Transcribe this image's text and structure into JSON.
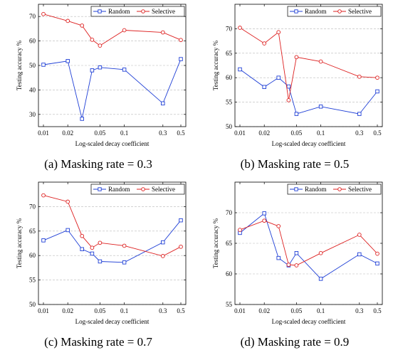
{
  "colors": {
    "random": "#1f3fd6",
    "selective": "#dd1f1f",
    "grid": "#b8b8b8"
  },
  "chart_data": [
    {
      "type": "line",
      "caption": "(a) Masking rate = 0.3",
      "xlabel": "Log-scaled decay coefficient",
      "ylabel": "Testing accuracy %",
      "xscale": "log",
      "xticks": [
        0.01,
        0.02,
        0.05,
        0.1,
        0.3,
        0.5
      ],
      "xtick_labels": [
        "0.01",
        "0.02",
        "0.05",
        "0.1",
        "0.3",
        "0.5"
      ],
      "ylim": [
        25,
        75
      ],
      "yticks": [
        30,
        40,
        50,
        60,
        70
      ],
      "grid": "horizontal dashed",
      "legend": "top-right",
      "series": [
        {
          "name": "Random",
          "marker": "square",
          "x": [
            0.01,
            0.02,
            0.03,
            0.04,
            0.05,
            0.1,
            0.3,
            0.5
          ],
          "y": [
            50.3,
            51.8,
            28.2,
            48.0,
            49.2,
            48.3,
            34.5,
            52.6
          ]
        },
        {
          "name": "Selective",
          "marker": "circle",
          "x": [
            0.01,
            0.02,
            0.03,
            0.04,
            0.05,
            0.1,
            0.3,
            0.5
          ],
          "y": [
            71.0,
            68.2,
            66.3,
            60.5,
            58.1,
            64.4,
            63.5,
            60.4
          ]
        }
      ]
    },
    {
      "type": "line",
      "caption": "(b) Masking rate = 0.5",
      "xlabel": "Log-scaled decay coefficient",
      "ylabel": "Testing accuracy %",
      "xscale": "log",
      "xticks": [
        0.01,
        0.02,
        0.05,
        0.1,
        0.3,
        0.5
      ],
      "xtick_labels": [
        "0.01",
        "0.02",
        "0.05",
        "0.1",
        "0.3",
        "0.5"
      ],
      "ylim": [
        50,
        75
      ],
      "yticks": [
        50,
        55,
        60,
        65,
        70
      ],
      "grid": "horizontal dashed",
      "legend": "top-right",
      "series": [
        {
          "name": "Random",
          "marker": "square",
          "x": [
            0.01,
            0.02,
            0.03,
            0.04,
            0.05,
            0.1,
            0.3,
            0.5
          ],
          "y": [
            61.7,
            58.1,
            60.0,
            58.2,
            52.6,
            54.1,
            52.6,
            57.2
          ]
        },
        {
          "name": "Selective",
          "marker": "circle",
          "x": [
            0.01,
            0.02,
            0.03,
            0.04,
            0.05,
            0.1,
            0.3,
            0.5
          ],
          "y": [
            70.2,
            67.0,
            69.3,
            55.4,
            64.2,
            63.3,
            60.2,
            60.0
          ]
        }
      ]
    },
    {
      "type": "line",
      "caption": "(c) Masking rate = 0.7",
      "xlabel": "Log-scaled decay coefficient",
      "ylabel": "Testing accuracy %",
      "xscale": "log",
      "xticks": [
        0.01,
        0.02,
        0.05,
        0.1,
        0.3,
        0.5
      ],
      "xtick_labels": [
        "0.01",
        "0.02",
        "0.05",
        "0.1",
        "0.3",
        "0.5"
      ],
      "ylim": [
        50,
        75
      ],
      "yticks": [
        50,
        55,
        60,
        65,
        70
      ],
      "grid": "horizontal dashed",
      "legend": "top-right",
      "series": [
        {
          "name": "Random",
          "marker": "square",
          "x": [
            0.01,
            0.02,
            0.03,
            0.04,
            0.05,
            0.1,
            0.3,
            0.5
          ],
          "y": [
            63.1,
            65.2,
            61.3,
            60.4,
            58.8,
            58.6,
            62.7,
            67.2
          ]
        },
        {
          "name": "Selective",
          "marker": "circle",
          "x": [
            0.01,
            0.02,
            0.03,
            0.04,
            0.05,
            0.1,
            0.3,
            0.5
          ],
          "y": [
            72.3,
            71.0,
            64.0,
            61.6,
            62.6,
            62.0,
            59.9,
            61.8
          ]
        }
      ]
    },
    {
      "type": "line",
      "caption": "(d) Masking rate = 0.9",
      "xlabel": "Log-scaled decay coefficient",
      "ylabel": "Testing accuracy %",
      "xscale": "log",
      "xticks": [
        0.01,
        0.02,
        0.05,
        0.1,
        0.3,
        0.5
      ],
      "xtick_labels": [
        "0.01",
        "0.02",
        "0.05",
        "0.1",
        "0.3",
        "0.5"
      ],
      "ylim": [
        55,
        75
      ],
      "yticks": [
        55,
        60,
        65,
        70
      ],
      "grid": "horizontal dashed",
      "legend": "top-right",
      "series": [
        {
          "name": "Random",
          "marker": "square",
          "x": [
            0.01,
            0.02,
            0.03,
            0.04,
            0.05,
            0.1,
            0.3,
            0.5
          ],
          "y": [
            66.7,
            69.9,
            62.6,
            61.4,
            63.4,
            59.2,
            63.2,
            61.7
          ]
        },
        {
          "name": "Selective",
          "marker": "circle",
          "x": [
            0.01,
            0.02,
            0.03,
            0.04,
            0.05,
            0.1,
            0.3,
            0.5
          ],
          "y": [
            67.2,
            68.7,
            67.8,
            61.5,
            61.4,
            63.4,
            66.4,
            63.3
          ]
        }
      ]
    }
  ]
}
